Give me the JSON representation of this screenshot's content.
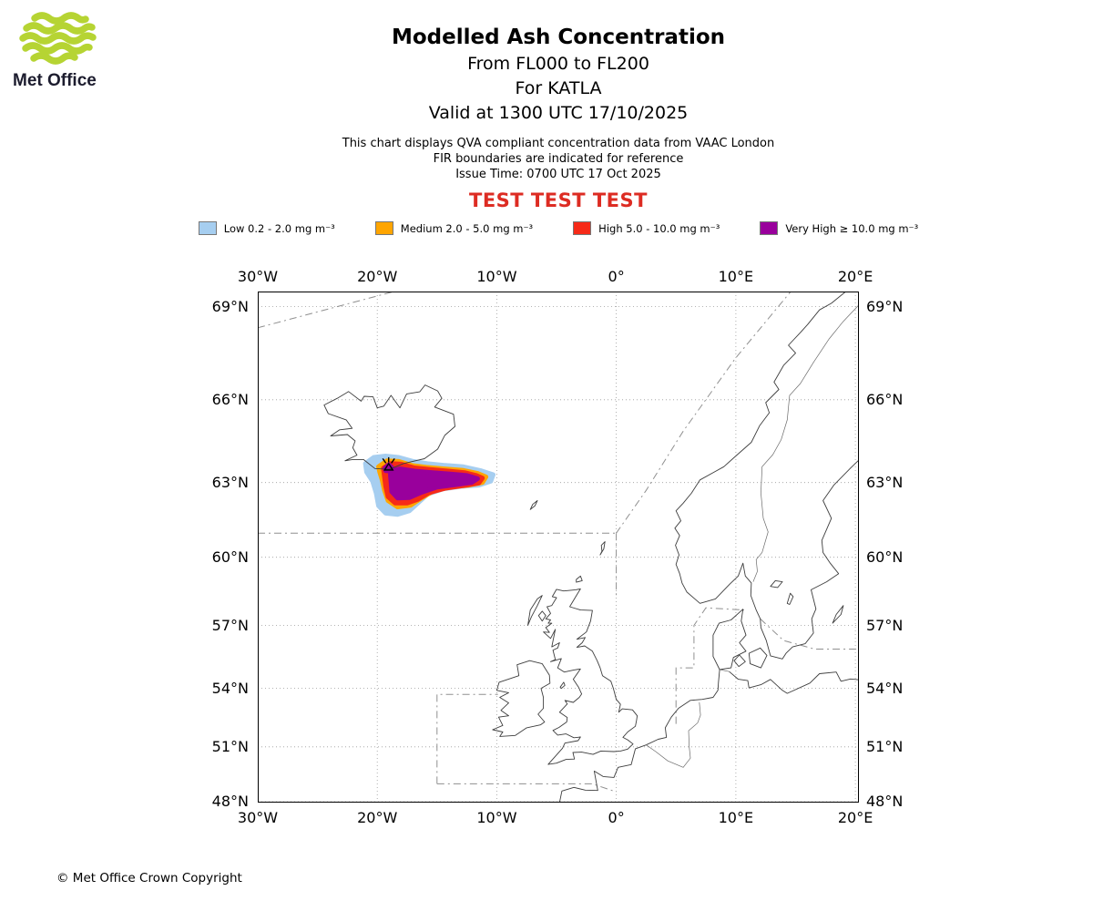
{
  "logo": {
    "text": "Met Office"
  },
  "header": {
    "title": "Modelled Ash Concentration",
    "subtitle1": "From FL000 to FL200",
    "subtitle2": "For KATLA",
    "subtitle3": "Valid at 1300 UTC 17/10/2025",
    "info1": "This chart displays QVA compliant concentration data from VAAC London",
    "info2": "FIR boundaries are indicated for reference",
    "info3": "Issue Time: 0700 UTC 17 Oct 2025",
    "test_banner": "TEST TEST TEST"
  },
  "legend": {
    "items": [
      {
        "label": "Low 0.2 - 2.0 mg m⁻³",
        "color": "#a6cef0"
      },
      {
        "label": "Medium 2.0 - 5.0 mg m⁻³",
        "color": "#ffa500"
      },
      {
        "label": "High 5.0 - 10.0 mg m⁻³",
        "color": "#f62a18"
      },
      {
        "label": "Very High  ≥  10.0 mg m⁻³",
        "color": "#99009c"
      }
    ]
  },
  "footer": {
    "copyright": "© Met Office Crown Copyright"
  },
  "chart_data": {
    "type": "map",
    "projection": "mercator",
    "lon_range": [
      -30,
      20.3
    ],
    "lat_range": [
      47.95,
      69.45
    ],
    "grid": true,
    "x_ticks": {
      "values": [
        -30,
        -20,
        -10,
        0,
        10,
        20
      ],
      "labels": [
        "30°W",
        "20°W",
        "10°W",
        "0°",
        "10°E",
        "20°E"
      ]
    },
    "y_ticks": {
      "values": [
        69,
        66,
        63,
        60,
        57,
        54,
        51,
        48
      ],
      "labels": [
        "69°N",
        "66°N",
        "63°N",
        "60°N",
        "57°N",
        "54°N",
        "51°N",
        "48°N"
      ]
    },
    "volcano": {
      "name": "KATLA",
      "lon": -19.05,
      "lat": 63.63
    },
    "ash_contours": [
      {
        "level": "Low",
        "range": "0.2 - 2.0 mg m⁻³",
        "color": "#a6cef0",
        "polygons": [
          [
            [
              -21.0,
              63.72
            ],
            [
              -20.3,
              63.95
            ],
            [
              -19.3,
              64.0
            ],
            [
              -18.2,
              63.95
            ],
            [
              -17.0,
              63.8
            ],
            [
              -15.8,
              63.72
            ],
            [
              -14.3,
              63.65
            ],
            [
              -12.8,
              63.6
            ],
            [
              -11.3,
              63.45
            ],
            [
              -10.3,
              63.3
            ],
            [
              -10.5,
              63.05
            ],
            [
              -11.5,
              62.9
            ],
            [
              -13.0,
              62.85
            ],
            [
              -14.5,
              62.75
            ],
            [
              -15.8,
              62.55
            ],
            [
              -16.6,
              62.2
            ],
            [
              -17.3,
              61.9
            ],
            [
              -18.3,
              61.75
            ],
            [
              -19.3,
              61.8
            ],
            [
              -19.9,
              62.1
            ],
            [
              -20.1,
              62.6
            ],
            [
              -20.4,
              63.05
            ],
            [
              -20.9,
              63.4
            ]
          ]
        ]
      },
      {
        "level": "Medium",
        "range": "2.0 - 5.0 mg m⁻³",
        "color": "#ffa500",
        "polygons": [
          [
            [
              -19.9,
              63.6
            ],
            [
              -19.2,
              63.82
            ],
            [
              -18.2,
              63.8
            ],
            [
              -17.1,
              63.65
            ],
            [
              -15.9,
              63.58
            ],
            [
              -14.4,
              63.52
            ],
            [
              -12.9,
              63.47
            ],
            [
              -11.6,
              63.35
            ],
            [
              -10.9,
              63.22
            ],
            [
              -11.2,
              63.0
            ],
            [
              -12.3,
              62.9
            ],
            [
              -13.9,
              62.82
            ],
            [
              -15.3,
              62.68
            ],
            [
              -16.3,
              62.4
            ],
            [
              -17.2,
              62.12
            ],
            [
              -18.3,
              62.05
            ],
            [
              -19.1,
              62.3
            ],
            [
              -19.4,
              62.7
            ],
            [
              -19.6,
              63.1
            ],
            [
              -19.8,
              63.4
            ]
          ]
        ]
      },
      {
        "level": "High",
        "range": "5.0 - 10.0 mg m⁻³",
        "color": "#f62a18",
        "polygons": [
          [
            [
              -19.5,
              63.55
            ],
            [
              -18.9,
              63.72
            ],
            [
              -18.0,
              63.7
            ],
            [
              -16.9,
              63.56
            ],
            [
              -15.6,
              63.5
            ],
            [
              -14.1,
              63.44
            ],
            [
              -12.7,
              63.38
            ],
            [
              -11.7,
              63.27
            ],
            [
              -11.2,
              63.17
            ],
            [
              -11.5,
              62.98
            ],
            [
              -12.8,
              62.88
            ],
            [
              -14.3,
              62.78
            ],
            [
              -15.7,
              62.6
            ],
            [
              -16.6,
              62.35
            ],
            [
              -17.5,
              62.2
            ],
            [
              -18.5,
              62.2
            ],
            [
              -19.1,
              62.45
            ],
            [
              -19.3,
              62.85
            ],
            [
              -19.4,
              63.2
            ]
          ]
        ]
      },
      {
        "level": "Very High",
        "range": "≥ 10.0 mg m⁻³",
        "color": "#99009c",
        "polygons": [
          [
            [
              -18.9,
              63.45
            ],
            [
              -18.1,
              63.52
            ],
            [
              -16.9,
              63.44
            ],
            [
              -15.4,
              63.38
            ],
            [
              -13.9,
              63.33
            ],
            [
              -12.5,
              63.27
            ],
            [
              -11.6,
              63.15
            ],
            [
              -12.1,
              63.0
            ],
            [
              -13.4,
              62.92
            ],
            [
              -15.0,
              62.82
            ],
            [
              -16.3,
              62.62
            ],
            [
              -17.3,
              62.42
            ],
            [
              -18.3,
              62.4
            ],
            [
              -18.8,
              62.65
            ],
            [
              -18.85,
              63.0
            ],
            [
              -18.9,
              63.25
            ]
          ],
          [
            [
              -19.35,
              63.55
            ],
            [
              -19.05,
              63.68
            ],
            [
              -18.8,
              63.58
            ],
            [
              -19.0,
              63.44
            ],
            [
              -19.3,
              63.45
            ]
          ]
        ]
      }
    ]
  }
}
